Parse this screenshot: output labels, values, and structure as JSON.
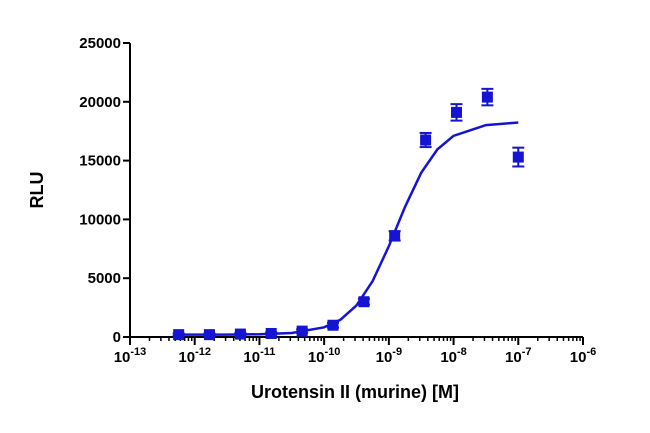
{
  "chart_data": {
    "type": "scatter",
    "x_label": "Urotensin II (murine) [M]",
    "y_label": "RLU",
    "xscale": "log",
    "xlim": [
      1e-13,
      1e-06
    ],
    "xticks": [
      {
        "value": 1e-13,
        "label": "10-13"
      },
      {
        "value": 1e-12,
        "label": "10-12"
      },
      {
        "value": 1e-11,
        "label": "10-11"
      },
      {
        "value": 1e-10,
        "label": "10-10"
      },
      {
        "value": 1e-09,
        "label": "10-9"
      },
      {
        "value": 1e-08,
        "label": "10-8"
      },
      {
        "value": 1e-07,
        "label": "10-7"
      },
      {
        "value": 1e-06,
        "label": "10-6"
      }
    ],
    "ylim": [
      0,
      25000
    ],
    "yticks": [
      0,
      5000,
      10000,
      15000,
      20000,
      25000
    ],
    "color": "#1414d2",
    "series": [
      {
        "kind": "points",
        "x": [
          5.65e-13,
          1.69e-12,
          5.08e-12,
          1.52e-11,
          4.57e-11,
          1.37e-10,
          4.12e-10,
          1.23e-09,
          3.7e-09,
          1.11e-08,
          3.33e-08,
          1e-07
        ],
        "values": [
          200,
          200,
          250,
          300,
          500,
          1000,
          3000,
          8600,
          16750,
          19100,
          20400,
          15300
        ],
        "errors": [
          100,
          100,
          100,
          100,
          150,
          200,
          250,
          400,
          600,
          700,
          700,
          800
        ]
      },
      {
        "kind": "fit",
        "x": [
          5.62e-13,
          1e-12,
          3.16e-12,
          1e-11,
          3.16e-11,
          1e-10,
          1.78e-10,
          3.16e-10,
          5.62e-10,
          1e-09,
          1.78e-09,
          3.16e-09,
          5.62e-09,
          1e-08,
          3.16e-08,
          1e-07
        ],
        "values": [
          200,
          200,
          207,
          232,
          343,
          824,
          1466,
          2686,
          4759,
          7723,
          11071,
          13964,
          15953,
          17108,
          18018,
          18237
        ]
      }
    ]
  }
}
